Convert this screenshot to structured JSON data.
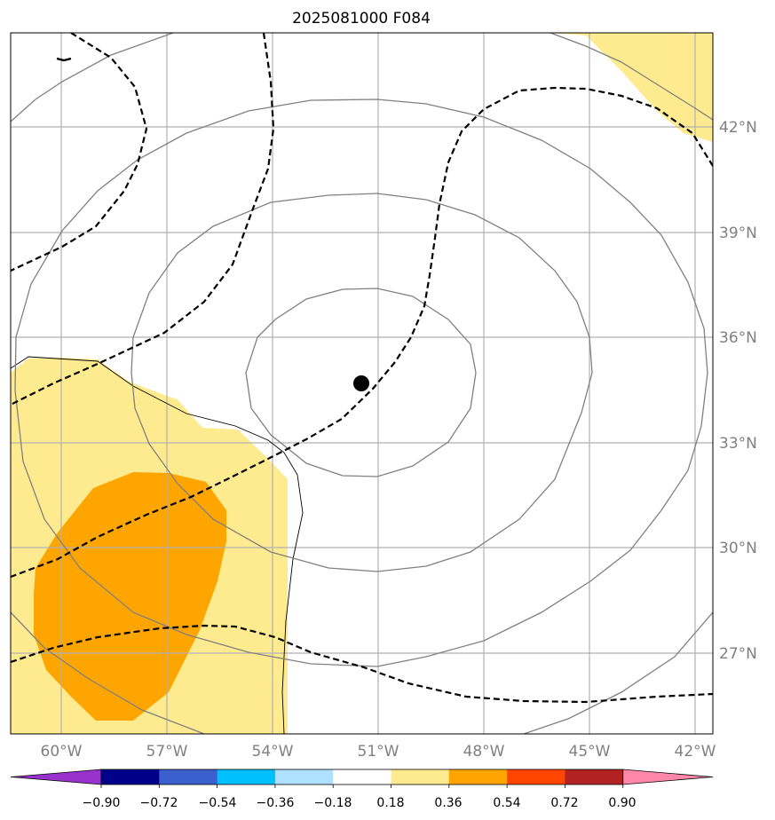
{
  "title": "2025081000 F084",
  "map": {
    "lon_range": [
      -61.0,
      -41.5
    ],
    "lat_range": [
      24.9,
      44.7
    ],
    "gridlines": true,
    "lon_ticks": [
      {
        "value": -60,
        "label": "60°W"
      },
      {
        "value": -57,
        "label": "57°W"
      },
      {
        "value": -54,
        "label": "54°W"
      },
      {
        "value": -51,
        "label": "51°W"
      },
      {
        "value": -48,
        "label": "48°W"
      },
      {
        "value": -45,
        "label": "45°W"
      },
      {
        "value": -42,
        "label": "42°W"
      }
    ],
    "lat_ticks": [
      {
        "value": 27,
        "label": "27°N"
      },
      {
        "value": 30,
        "label": "30°N"
      },
      {
        "value": 33,
        "label": "33°N"
      },
      {
        "value": 36,
        "label": "36°N"
      },
      {
        "value": 39,
        "label": "39°N"
      },
      {
        "value": 42,
        "label": "42°N"
      }
    ],
    "storm_center": {
      "lon": -51.45,
      "lat": 34.6
    },
    "colors": {
      "fill_0_18_0_36": "#ffeb8f",
      "fill_0_36_0_54": "#ffa500",
      "contour_solid": "#808080",
      "contour_dashed": "#000000",
      "boundary": "#000000",
      "grid": "#b0b0b0"
    }
  },
  "colorbar": {
    "extend": "both",
    "colors": [
      "#9932cc",
      "#00008b",
      "#3b5fcd",
      "#00bfff",
      "#b0e0ff",
      "#ffffff",
      "#ffeb8f",
      "#ffa500",
      "#ff4500",
      "#b22222",
      "#ff88aa"
    ],
    "ticks": [
      "−0.90",
      "−0.72",
      "−0.54",
      "−0.36",
      "−0.18",
      "0.18",
      "0.36",
      "0.54",
      "0.72",
      "0.90"
    ]
  }
}
